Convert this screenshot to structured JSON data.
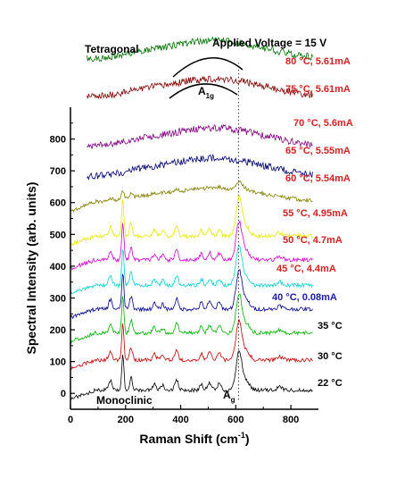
{
  "chart_data": {
    "type": "line",
    "title": "",
    "header": "Applied Voltage = 15 V",
    "xlabel": "Raman Shift (cm",
    "xlabel_sup": "-1",
    "xlabel_end": ")",
    "ylabel": "Spectral Intensity (arb. units)",
    "xlim": [
      0,
      900
    ],
    "ylim": [
      -50,
      900
    ],
    "x_ticks": [
      "0",
      "200",
      "400",
      "600",
      "800"
    ],
    "y_ticks": [
      "0",
      "100",
      "200",
      "300",
      "400",
      "500",
      "600",
      "700",
      "800"
    ],
    "grid": false,
    "reference_line_x": 610,
    "annotations": {
      "tetragonal": "Tetragonal",
      "monoclinic": "Monoclinic",
      "a1g_main": "A",
      "a1g_sub": "1g",
      "ag_main": "A",
      "ag_sub": "g"
    },
    "series": [
      {
        "name": "22 °C",
        "color": "#000000",
        "offset": 10,
        "kind": "mono",
        "mono": 1.0
      },
      {
        "name": "30 °C",
        "color": "#c00000",
        "offset": 105,
        "kind": "mono",
        "mono": 1.0
      },
      {
        "name": "35 °C",
        "color": "#00b000",
        "offset": 190,
        "kind": "mono",
        "mono": 1.0
      },
      {
        "name": "40 °C, 0.08mA",
        "color": "#000090",
        "offset": 265,
        "kind": "mono",
        "mono": 1.0
      },
      {
        "name": "45 °C, 4.4mA",
        "color": "#00d0d0",
        "offset": 340,
        "kind": "mono",
        "mono": 1.0
      },
      {
        "name": "50 °C, 4.7mA",
        "color": "#d000d0",
        "offset": 420,
        "kind": "mono",
        "mono": 1.0
      },
      {
        "name": "55 °C, 4.95mA",
        "color": "#e8e800",
        "offset": 495,
        "kind": "mono",
        "mono": 1.0
      },
      {
        "name": "60 °C, 5.54mA",
        "color": "#808000",
        "offset": 600,
        "kind": "mixed",
        "mono": 0.25
      },
      {
        "name": "65 °C, 5.55mA",
        "color": "#000070",
        "offset": 680,
        "kind": "tetra",
        "mono": 0
      },
      {
        "name": "70 °C, 5.6mA",
        "color": "#800080",
        "offset": 775,
        "kind": "tetra",
        "mono": 0
      },
      {
        "name": "75 °C, 5.61mA",
        "color": "#800000",
        "offset": 930,
        "kind": "tetra",
        "mono": 0
      },
      {
        "name": "80 °C, 5.61mA",
        "color": "#007000",
        "offset": 1050,
        "kind": "tetra",
        "mono": 0
      }
    ],
    "label_colors": {
      "22 °C": "#000000",
      "30 °C": "#000000",
      "35 °C": "#000000",
      "40 °C, 0.08mA": "#1a1aa8",
      "45 °C, 4.4mA": "#d42020",
      "50 °C, 4.7mA": "#d42020",
      "55 °C, 4.95mA": "#d42020",
      "60 °C, 5.54mA": "#d42020",
      "65 °C, 5.55mA": "#d42020",
      "70 °C, 5.6mA": "#d42020",
      "75 °C, 5.61mA": "#d42020",
      "80 °C, 5.61mA": "#d42020"
    }
  }
}
